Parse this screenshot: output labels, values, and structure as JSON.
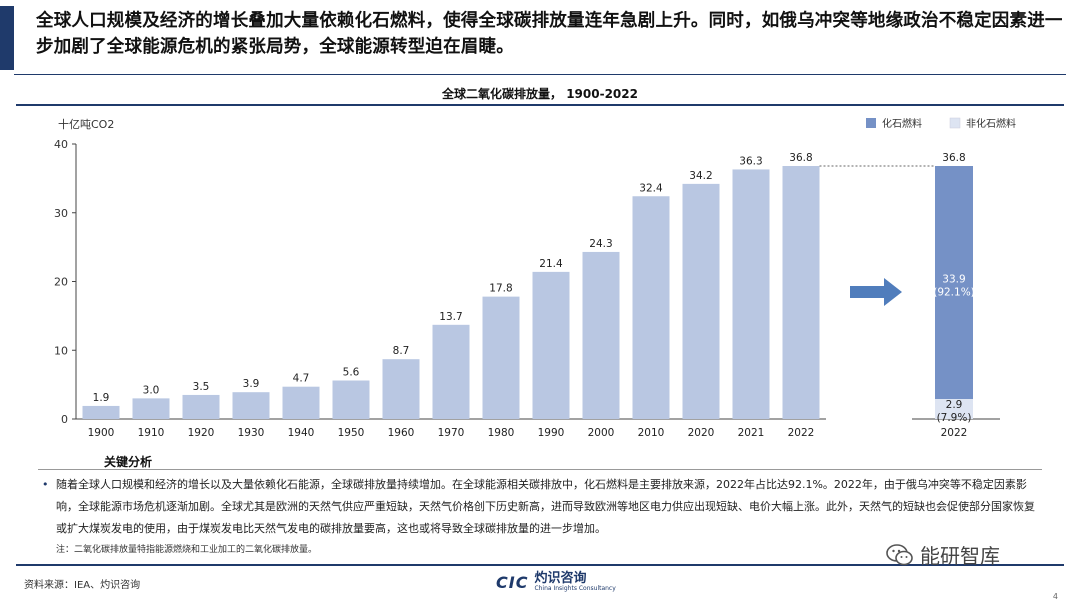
{
  "headline": "全球人口规模及经济的增长叠加大量依赖化石燃料，使得全球碳排放量连年急剧上升。同时，如俄乌冲突等地缘政治不稳定因素进一步加剧了全球能源危机的紧张局势，全球能源转型迫在眉睫。",
  "chart_data": {
    "type": "bar",
    "title": "全球二氧化碳排放量， 1900-2022",
    "ylabel": "十亿吨CO2",
    "ylim": [
      0,
      40
    ],
    "yticks": [
      0,
      10,
      20,
      30,
      40
    ],
    "categories": [
      "1900",
      "1910",
      "1920",
      "1930",
      "1940",
      "1950",
      "1960",
      "1970",
      "1980",
      "1990",
      "2000",
      "2010",
      "2020",
      "2021",
      "2022"
    ],
    "values": [
      1.9,
      3.0,
      3.5,
      3.9,
      4.7,
      5.6,
      8.7,
      13.7,
      17.8,
      21.4,
      24.3,
      32.4,
      34.2,
      36.3,
      36.8
    ],
    "value_labels": [
      "1.9",
      "3.0",
      "3.5",
      "3.9",
      "4.7",
      "5.6",
      "8.7",
      "13.7",
      "17.8",
      "21.4",
      "24.3",
      "32.4",
      "34.2",
      "36.3",
      "36.8"
    ],
    "legend": [
      "化石燃料",
      "非化石燃料"
    ],
    "legend_position": "top-right",
    "breakdown": {
      "category": "2022",
      "total": 36.8,
      "total_label": "36.8",
      "fossil": 33.9,
      "fossil_label": "33.9",
      "fossil_pct": "(92.1%)",
      "non_fossil": 2.9,
      "non_fossil_label": "2.9",
      "non_fossil_pct": "(7.9%)"
    },
    "colors": {
      "bar": "#b9c7e2",
      "fossil": "#7591c6",
      "non_fossil": "#dde4f2",
      "axis": "#444444"
    }
  },
  "notes": {
    "heading": "关键分析",
    "bullet": "•",
    "body": "随着全球人口规模和经济的增长以及大量依赖化石能源，全球碳排放量持续增加。在全球能源相关碳排放中，化石燃料是主要排放来源，2022年占比达92.1%。2022年，由于俄乌冲突等不稳定因素影响，全球能源市场危机逐渐加剧。全球尤其是欧洲的天然气供应严重短缺，天然气价格创下历史新高，进而导致欧洲等地区电力供应出现短缺、电价大幅上涨。此外，天然气的短缺也会促使部分国家恢复或扩大煤炭发电的使用，由于煤炭发电比天然气发电的碳排放量要高，这也或将导致全球碳排放量的进一步增加。",
    "footnote": "注：二氧化碳排放量特指能源燃烧和工业加工的二氧化碳排放量。"
  },
  "footer": {
    "source": "资料来源：IEA、灼识咨询",
    "logo_mark": "CIC",
    "logo_cn": "灼识咨询",
    "logo_en": "China Insights Consultancy",
    "wechat": "能研智库",
    "page": "4"
  }
}
